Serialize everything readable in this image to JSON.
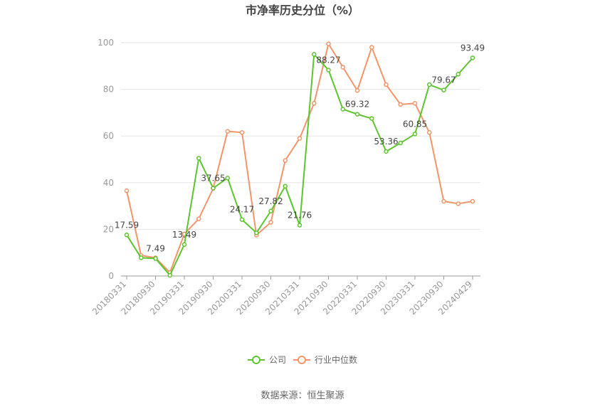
{
  "title": "市净率历史分位（%）",
  "source": "数据来源：恒生聚源",
  "colors": {
    "company": "#5ec42f",
    "industry": "#f2956a",
    "grid": "#e6e6e6",
    "axis": "#999999"
  },
  "chart_data": {
    "type": "line",
    "title": "市净率历史分位（%）",
    "ylim": [
      0,
      100
    ],
    "yticks": [
      0,
      20,
      40,
      60,
      80,
      100
    ],
    "grid": true,
    "legend_position": "bottom",
    "x_tick_labels": [
      "20180331",
      "20180930",
      "20190331",
      "20190930",
      "20200331",
      "20200930",
      "20210331",
      "20210930",
      "20220331",
      "20220930",
      "20230331",
      "20230930",
      "20240429"
    ],
    "series": [
      {
        "name": "公司",
        "values": [
          17.59,
          7.8,
          7.49,
          0.3,
          13.49,
          50.5,
          37.65,
          42.0,
          24.17,
          18.5,
          27.82,
          38.5,
          21.76,
          95.0,
          88.27,
          71.5,
          69.32,
          67.5,
          53.36,
          57.0,
          60.85,
          82.0,
          79.67,
          86.5,
          93.49
        ]
      },
      {
        "name": "行业中位数",
        "values": [
          36.5,
          8.8,
          7.8,
          1.5,
          18.0,
          24.5,
          37.5,
          62.0,
          61.5,
          17.5,
          23.0,
          49.5,
          59.0,
          74.0,
          99.5,
          89.5,
          79.5,
          98.0,
          82.0,
          73.5,
          74.0,
          61.5,
          32.0,
          31.0,
          32.0
        ]
      }
    ],
    "data_labels": [
      {
        "index": 0,
        "text": "17.59"
      },
      {
        "index": 2,
        "text": "7.49"
      },
      {
        "index": 4,
        "text": "13.49"
      },
      {
        "index": 6,
        "text": "37.65"
      },
      {
        "index": 8,
        "text": "24.17"
      },
      {
        "index": 10,
        "text": "27.82"
      },
      {
        "index": 12,
        "text": "21.76"
      },
      {
        "index": 14,
        "text": "88.27"
      },
      {
        "index": 16,
        "text": "69.32"
      },
      {
        "index": 18,
        "text": "53.36"
      },
      {
        "index": 20,
        "text": "60.85"
      },
      {
        "index": 22,
        "text": "79.67"
      },
      {
        "index": 24,
        "text": "93.49"
      }
    ]
  }
}
